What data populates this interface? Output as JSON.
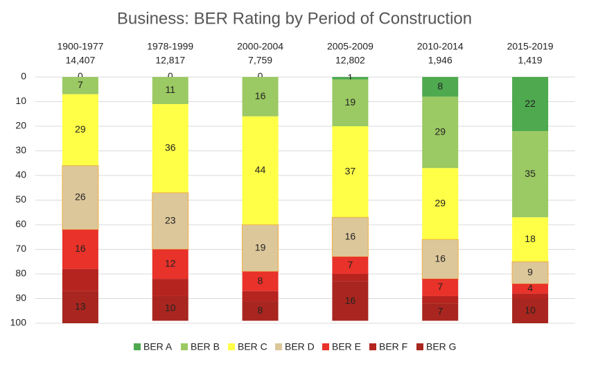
{
  "chart_data": {
    "type": "stacked_bar",
    "title": "Business: BER Rating by Period of Construction",
    "categories": [
      "1900-1977",
      "1978-1999",
      "2000-2004",
      "2005-2009",
      "2010-2014",
      "2015-2019"
    ],
    "category_counts": [
      "14,407",
      "12,817",
      "7,759",
      "12,802",
      "1,946",
      "1,419"
    ],
    "series": [
      {
        "name": "BER A",
        "color": "#4ea94f",
        "values": [
          0,
          0,
          0,
          1,
          8,
          22
        ],
        "show_labels": true
      },
      {
        "name": "BER B",
        "color": "#9bc963",
        "values": [
          7,
          11,
          16,
          19,
          29,
          35
        ],
        "show_labels": true
      },
      {
        "name": "BER C",
        "color": "#ffff47",
        "values": [
          29,
          36,
          44,
          37,
          29,
          18
        ],
        "show_labels": true
      },
      {
        "name": "BER D",
        "color": "#dcc79b",
        "values": [
          26,
          23,
          19,
          16,
          16,
          9
        ],
        "show_labels": true
      },
      {
        "name": "BER E",
        "color": "#e8322a",
        "values": [
          16,
          12,
          8,
          7,
          7,
          4
        ],
        "show_labels": true
      },
      {
        "name": "BER F",
        "color": "#b5241f",
        "values": [
          9,
          7,
          4,
          3,
          3,
          2
        ],
        "show_labels": false
      },
      {
        "name": "BER G",
        "color": "#a8261f",
        "values": [
          13,
          10,
          8,
          16,
          7,
          10
        ],
        "show_labels": true
      }
    ],
    "ylim": [
      0,
      100
    ],
    "yticks": [
      0,
      10,
      20,
      30,
      40,
      50,
      60,
      70,
      80,
      90,
      100
    ],
    "y_inverted": true,
    "grid": true,
    "legend": "bottom"
  }
}
